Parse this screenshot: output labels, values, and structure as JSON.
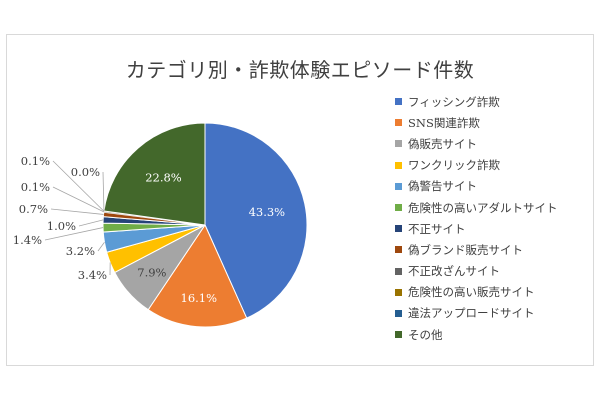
{
  "chart_data": {
    "type": "pie",
    "title": "カテゴリ別・詐欺体験エピソード件数",
    "slices": [
      {
        "name": "フィッシング詐欺",
        "value": 43.3,
        "label": "43.3%",
        "color": "#4472C4"
      },
      {
        "name": "SNS関連詐欺",
        "value": 16.1,
        "label": "16.1%",
        "color": "#ED7D31"
      },
      {
        "name": "偽販売サイト",
        "value": 7.9,
        "label": "7.9%",
        "color": "#A5A5A5"
      },
      {
        "name": "ワンクリック詐欺",
        "value": 3.4,
        "label": "3.4%",
        "color": "#FFC000"
      },
      {
        "name": "偽警告サイト",
        "value": 3.2,
        "label": "3.2%",
        "color": "#5B9BD5"
      },
      {
        "name": "危険性の高いアダルトサイト",
        "value": 1.4,
        "label": "1.4%",
        "color": "#70AD47"
      },
      {
        "name": "不正サイト",
        "value": 1.0,
        "label": "1.0%",
        "color": "#264478"
      },
      {
        "name": "偽ブランド販売サイト",
        "value": 0.7,
        "label": "0.7%",
        "color": "#9E480E"
      },
      {
        "name": "不正改ざんサイト",
        "value": 0.1,
        "label": "0.1%",
        "color": "#636363"
      },
      {
        "name": "危険性の高い販売サイト",
        "value": 0.1,
        "label": "0.1%",
        "color": "#997300"
      },
      {
        "name": "違法アップロードサイト",
        "value": 0.0,
        "label": "0.0%",
        "color": "#255E91"
      },
      {
        "name": "その他",
        "value": 22.8,
        "label": "22.8%",
        "color": "#43682B"
      }
    ],
    "legend_position": "right"
  }
}
